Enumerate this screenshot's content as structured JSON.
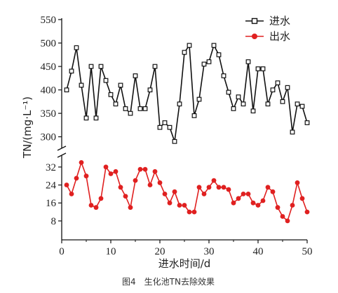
{
  "chart_data": {
    "type": "line",
    "title": "",
    "caption": "图4　生化池TN去除效果",
    "xlabel": "进水时间/d",
    "ylabel": "TN/(mg·L⁻¹)",
    "xlim": [
      0,
      50
    ],
    "x_ticks": [
      0,
      10,
      20,
      30,
      40,
      50
    ],
    "y_upper_range": [
      280,
      550
    ],
    "y_upper_ticks": [
      300,
      350,
      400,
      450,
      500,
      550
    ],
    "y_lower_range": [
      3,
      36
    ],
    "y_lower_ticks": [
      8,
      16,
      24,
      32
    ],
    "axis_break": true,
    "grid": false,
    "legend_position": "top-right",
    "x": [
      1,
      2,
      3,
      4,
      5,
      6,
      7,
      8,
      9,
      10,
      11,
      12,
      13,
      14,
      15,
      16,
      17,
      18,
      19,
      20,
      21,
      22,
      23,
      24,
      25,
      26,
      27,
      28,
      29,
      30,
      31,
      32,
      33,
      34,
      35,
      36,
      37,
      38,
      39,
      40,
      41,
      42,
      43,
      44,
      45,
      46,
      47,
      48,
      49,
      50
    ],
    "series": [
      {
        "name": "进水",
        "color": "#111111",
        "marker": "square",
        "values": [
          400,
          440,
          490,
          410,
          340,
          450,
          340,
          450,
          420,
          390,
          370,
          410,
          360,
          350,
          430,
          360,
          360,
          400,
          450,
          320,
          330,
          320,
          290,
          370,
          480,
          495,
          345,
          380,
          455,
          460,
          495,
          475,
          430,
          395,
          360,
          385,
          370,
          460,
          355,
          445,
          445,
          370,
          400,
          415,
          375,
          405,
          310,
          370,
          365,
          330
        ]
      },
      {
        "name": "出水",
        "color": "#e02020",
        "marker": "circle",
        "values": [
          24,
          20,
          27,
          34,
          28,
          15,
          14,
          18,
          32,
          29,
          30,
          23,
          19,
          14,
          26,
          31,
          31,
          24,
          30,
          25,
          20,
          16,
          21,
          15,
          15,
          12,
          12,
          23,
          20,
          23,
          26,
          23,
          23,
          22,
          16,
          18,
          20,
          20,
          16,
          15,
          17,
          23,
          21,
          14,
          10,
          8,
          15,
          25,
          18,
          12
        ]
      }
    ]
  }
}
